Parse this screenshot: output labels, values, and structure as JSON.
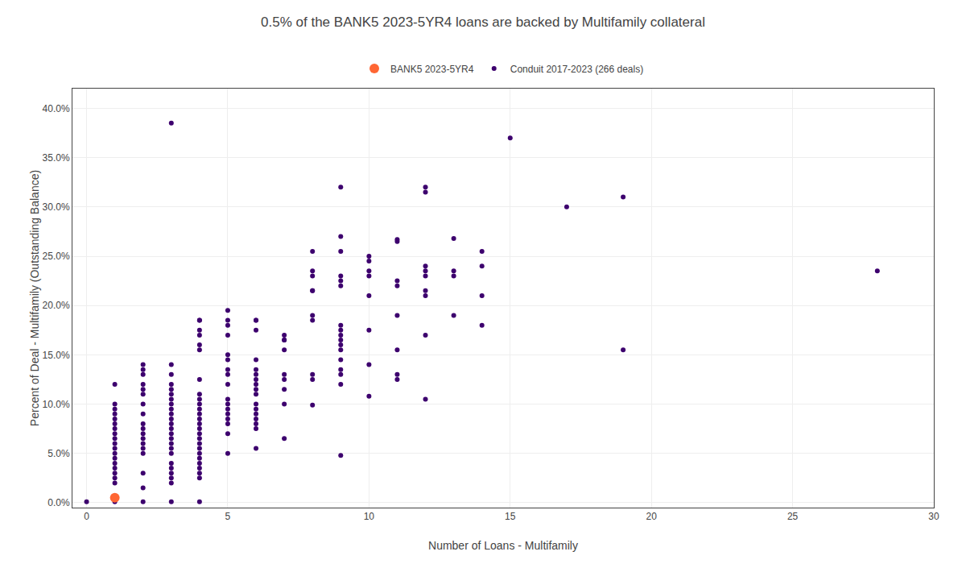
{
  "chart_data": {
    "type": "scatter",
    "title": "0.5% of the BANK5 2023-5YR4 loans are backed by Multifamily collateral",
    "xlabel": "Number of Loans - Multifamily",
    "ylabel": "Percent of Deal - Multifamily (Outstanding Balance)",
    "series": [
      {
        "name": "BANK5 2023-5YR4",
        "color": "#FF6633",
        "marker": "circle",
        "x": [
          1
        ],
        "values": [
          0.005
        ]
      },
      {
        "name": "Conduit 2017-2023 (266 deals)",
        "color": "#3d006e",
        "marker": "circle",
        "x": [
          0,
          1,
          1,
          1,
          1,
          1,
          1,
          1,
          1,
          1,
          1,
          1,
          1,
          1,
          1,
          1,
          1,
          1,
          1,
          1,
          2,
          2,
          2,
          2,
          2,
          2,
          2,
          2,
          2,
          2,
          2,
          2,
          2,
          2,
          2,
          2,
          2,
          2,
          3,
          3,
          3,
          3,
          3,
          3,
          3,
          3,
          3,
          3,
          3,
          3,
          3,
          3,
          3,
          3,
          3,
          3,
          3,
          3,
          3,
          3,
          3,
          3,
          4,
          4,
          4,
          4,
          4,
          4,
          4,
          4,
          4,
          4,
          4,
          4,
          4,
          4,
          4,
          4,
          4,
          4,
          4,
          4,
          4,
          4,
          4,
          4,
          4,
          4,
          5,
          5,
          5,
          5,
          5,
          5,
          5,
          5,
          5,
          5,
          5,
          5,
          5,
          5,
          5,
          5,
          5,
          6,
          6,
          6,
          6,
          6,
          6,
          6,
          6,
          6,
          6,
          6,
          6,
          6,
          6,
          6,
          6,
          6,
          7,
          7,
          7,
          7,
          7,
          7,
          7,
          7,
          7,
          8,
          8,
          8,
          8,
          8,
          8,
          8,
          8,
          8,
          8,
          9,
          9,
          9,
          9,
          9,
          9,
          9,
          9,
          9,
          9,
          9,
          9,
          9,
          9,
          9,
          9,
          9,
          10,
          10,
          10,
          10,
          10,
          10,
          10,
          10,
          11,
          11,
          11,
          11,
          11,
          11,
          11,
          11,
          12,
          12,
          12,
          12,
          12,
          12,
          12,
          12,
          12,
          13,
          13,
          13,
          13,
          14,
          14,
          14,
          14,
          15,
          17,
          19,
          19,
          28
        ],
        "values": [
          0.001,
          0.001,
          0.02,
          0.025,
          0.03,
          0.035,
          0.04,
          0.045,
          0.05,
          0.055,
          0.06,
          0.065,
          0.07,
          0.075,
          0.08,
          0.085,
          0.09,
          0.095,
          0.1,
          0.12,
          0.001,
          0.03,
          0.05,
          0.055,
          0.06,
          0.065,
          0.07,
          0.075,
          0.08,
          0.09,
          0.1,
          0.11,
          0.115,
          0.12,
          0.13,
          0.135,
          0.14,
          0.015,
          0.001,
          0.02,
          0.025,
          0.03,
          0.035,
          0.04,
          0.05,
          0.055,
          0.06,
          0.065,
          0.07,
          0.075,
          0.08,
          0.085,
          0.09,
          0.095,
          0.1,
          0.105,
          0.11,
          0.115,
          0.12,
          0.13,
          0.14,
          0.385,
          0.001,
          0.025,
          0.03,
          0.035,
          0.04,
          0.045,
          0.05,
          0.055,
          0.06,
          0.065,
          0.07,
          0.075,
          0.08,
          0.085,
          0.09,
          0.095,
          0.1,
          0.105,
          0.11,
          0.125,
          0.155,
          0.16,
          0.17,
          0.175,
          0.185,
          0.185,
          0.05,
          0.07,
          0.08,
          0.085,
          0.09,
          0.095,
          0.1,
          0.105,
          0.12,
          0.13,
          0.135,
          0.145,
          0.15,
          0.17,
          0.18,
          0.185,
          0.195,
          0.055,
          0.075,
          0.08,
          0.085,
          0.09,
          0.095,
          0.1,
          0.11,
          0.115,
          0.12,
          0.125,
          0.13,
          0.135,
          0.145,
          0.175,
          0.185,
          0.185,
          0.065,
          0.1,
          0.115,
          0.125,
          0.13,
          0.155,
          0.165,
          0.165,
          0.17,
          0.099,
          0.125,
          0.13,
          0.185,
          0.19,
          0.215,
          0.215,
          0.23,
          0.235,
          0.255,
          0.048,
          0.12,
          0.13,
          0.135,
          0.145,
          0.155,
          0.16,
          0.165,
          0.17,
          0.175,
          0.18,
          0.22,
          0.225,
          0.23,
          0.255,
          0.27,
          0.32,
          0.108,
          0.14,
          0.175,
          0.21,
          0.23,
          0.235,
          0.245,
          0.25,
          0.125,
          0.13,
          0.155,
          0.19,
          0.22,
          0.225,
          0.265,
          0.267,
          0.105,
          0.17,
          0.21,
          0.215,
          0.23,
          0.235,
          0.24,
          0.315,
          0.32,
          0.19,
          0.23,
          0.235,
          0.268,
          0.18,
          0.21,
          0.24,
          0.255,
          0.37,
          0.3,
          0.155,
          0.31,
          0.235
        ]
      }
    ],
    "xlim": [
      -0.5,
      30
    ],
    "xticks": [
      0,
      5,
      10,
      15,
      20,
      25,
      30
    ],
    "ylim": [
      -0.005,
      0.42
    ],
    "yticks": [
      {
        "value": 0.0,
        "label": "0.0%"
      },
      {
        "value": 0.05,
        "label": "5.0%"
      },
      {
        "value": 0.1,
        "label": "10.0%"
      },
      {
        "value": 0.15,
        "label": "15.0%"
      },
      {
        "value": 0.2,
        "label": "20.0%"
      },
      {
        "value": 0.25,
        "label": "25.0%"
      },
      {
        "value": 0.3,
        "label": "30.0%"
      },
      {
        "value": 0.35,
        "label": "35.0%"
      },
      {
        "value": 0.4,
        "label": "40.0%"
      }
    ],
    "grid": true,
    "legend": "top"
  }
}
